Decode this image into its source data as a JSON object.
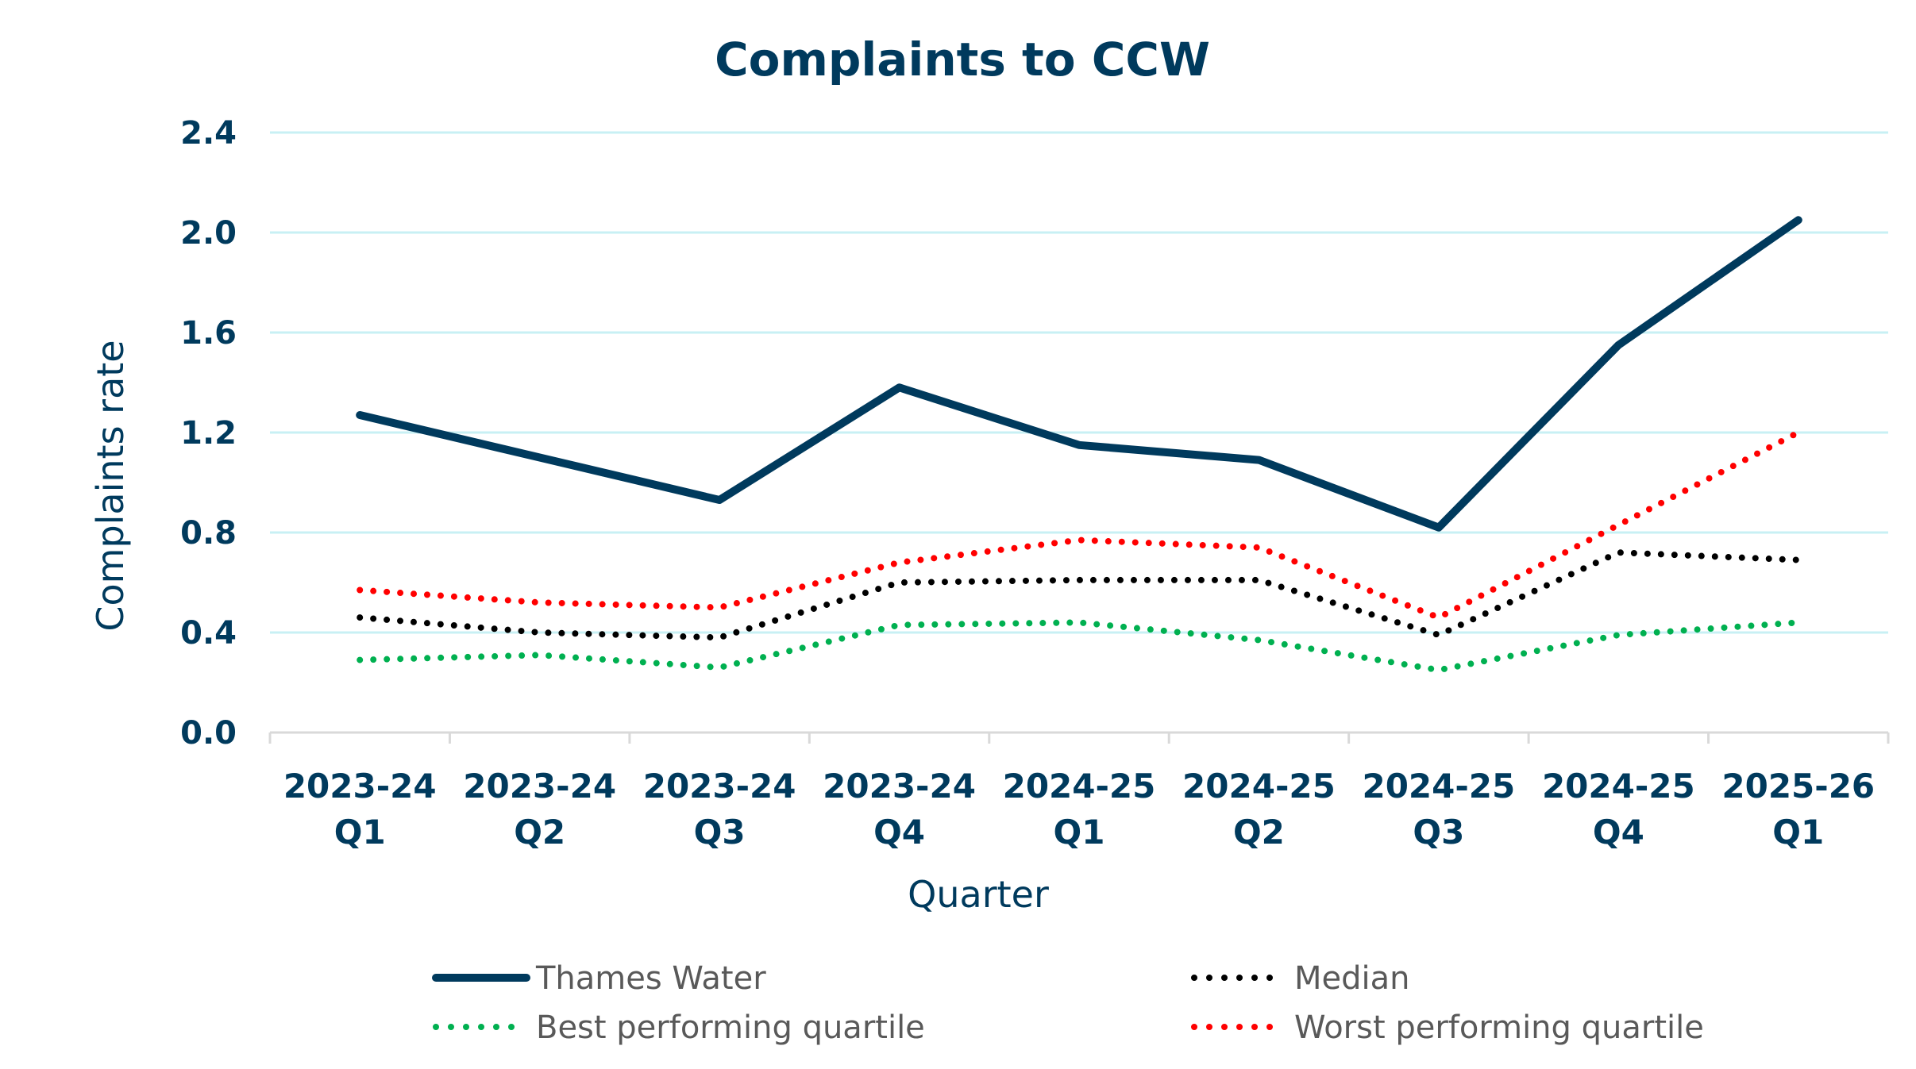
{
  "chart_data": {
    "type": "line",
    "title": "Complaints to CCW",
    "xlabel": "Quarter",
    "ylabel": "Complaints rate",
    "ylim": [
      0,
      2.4
    ],
    "yticks": [
      "0.0",
      "0.4",
      "0.8",
      "1.2",
      "1.6",
      "2.0",
      "2.4"
    ],
    "ytick_values": [
      0,
      0.4,
      0.8,
      1.2,
      1.6,
      2.0,
      2.4
    ],
    "grid": true,
    "legend_position": "bottom",
    "categories": [
      [
        "2023-24",
        "Q1"
      ],
      [
        "2023-24",
        "Q2"
      ],
      [
        "2023-24",
        "Q3"
      ],
      [
        "2023-24",
        "Q4"
      ],
      [
        "2024-25",
        "Q1"
      ],
      [
        "2024-25",
        "Q2"
      ],
      [
        "2024-25",
        "Q3"
      ],
      [
        "2024-25",
        "Q4"
      ],
      [
        "2025-26",
        "Q1"
      ]
    ],
    "series": [
      {
        "name": "Thames Water",
        "style": "solid",
        "color": "#003a5d",
        "values": [
          1.27,
          1.1,
          0.93,
          1.38,
          1.15,
          1.09,
          0.82,
          1.55,
          2.05
        ]
      },
      {
        "name": "Median",
        "style": "dotted",
        "color": "#000000",
        "values": [
          0.46,
          0.4,
          0.38,
          0.6,
          0.61,
          0.61,
          0.39,
          0.72,
          0.69
        ]
      },
      {
        "name": "Best performing quartile",
        "style": "dotted",
        "color": "#00b050",
        "values": [
          0.29,
          0.31,
          0.26,
          0.43,
          0.44,
          0.37,
          0.25,
          0.39,
          0.44
        ]
      },
      {
        "name": "Worst performing quartile",
        "style": "dotted",
        "color": "#ff0000",
        "values": [
          0.57,
          0.52,
          0.5,
          0.68,
          0.77,
          0.74,
          0.46,
          0.83,
          1.2
        ]
      }
    ],
    "legend": [
      {
        "label": "Thames Water",
        "series": 0
      },
      {
        "label": "Median",
        "series": 1
      },
      {
        "label": "Best performing quartile",
        "series": 2
      },
      {
        "label": "Worst performing quartile",
        "series": 3
      }
    ]
  }
}
